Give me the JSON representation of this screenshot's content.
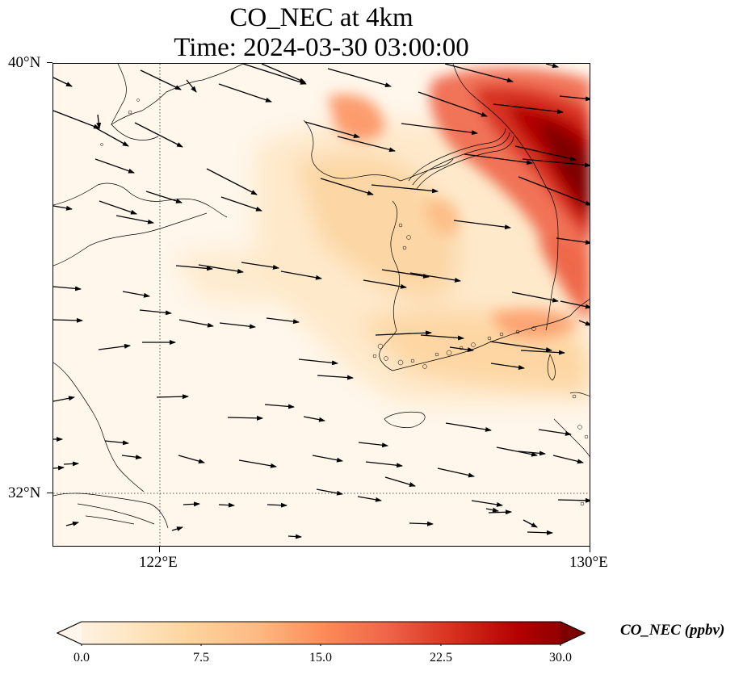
{
  "title": {
    "line1": "CO_NEC at 4km",
    "line2": "Time: 2024-03-30 03:00:00"
  },
  "axes": {
    "y_ticks": [
      "40°N",
      "32°N"
    ],
    "x_ticks": [
      "122°E",
      "130°E"
    ]
  },
  "map": {
    "lon_range": [
      120,
      130
    ],
    "lat_range": [
      31,
      40
    ],
    "gridlines": "dotted at 122°E and 32°N",
    "field": "CO_NEC concentration, OrRd colormap",
    "vectors": "wind arrows, predominantly westerly to west-northwesterly"
  },
  "colorbar": {
    "label": "CO_NEC (ppbv)",
    "tick_labels": [
      "0.0",
      "7.5",
      "15.0",
      "22.5",
      "30.0"
    ],
    "colormap": "OrRd",
    "range": [
      0,
      30
    ],
    "extend": "both",
    "colors": [
      "#fff7ec",
      "#fee8c8",
      "#fdd49e",
      "#fdbb84",
      "#fc8d59",
      "#ef6548",
      "#d7301f",
      "#b30000",
      "#7f0000"
    ]
  }
}
